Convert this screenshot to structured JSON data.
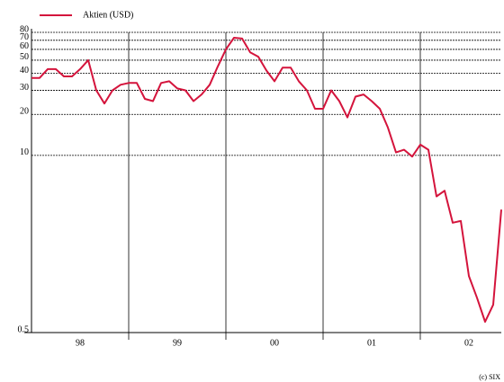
{
  "chart_data": {
    "type": "line",
    "log_y": true,
    "grid": true,
    "series": [
      {
        "name": "Aktien (USD)",
        "color": "#d4143c",
        "values": [
          37,
          37,
          43,
          43,
          38,
          38,
          43,
          50,
          30,
          24,
          30,
          33,
          34,
          34,
          26,
          25,
          34,
          35,
          31,
          30,
          25,
          28,
          33,
          45,
          60,
          73,
          72,
          57,
          53,
          42,
          35,
          44,
          44,
          35,
          30,
          22,
          22,
          30,
          25,
          19,
          27,
          28,
          25,
          22,
          16,
          10.5,
          11,
          9.8,
          12,
          11,
          5,
          5.5,
          3.2,
          3.3,
          1.3,
          0.9,
          0.6,
          0.8,
          4
        ]
      }
    ],
    "x": [
      "1998-01",
      "1998-02",
      "1998-03",
      "1998-04",
      "1998-05",
      "1998-06",
      "1998-07",
      "1998-08",
      "1998-09",
      "1998-10",
      "1998-11",
      "1998-12",
      "1999-01",
      "1999-02",
      "1999-03",
      "1999-04",
      "1999-05",
      "1999-06",
      "1999-07",
      "1999-08",
      "1999-09",
      "1999-10",
      "1999-11",
      "1999-12",
      "2000-01",
      "2000-02",
      "2000-03",
      "2000-04",
      "2000-05",
      "2000-06",
      "2000-07",
      "2000-08",
      "2000-09",
      "2000-10",
      "2000-11",
      "2000-12",
      "2001-01",
      "2001-02",
      "2001-03",
      "2001-04",
      "2001-05",
      "2001-06",
      "2001-07",
      "2001-08",
      "2001-09",
      "2001-10",
      "2001-11",
      "2001-12",
      "2002-01",
      "2002-02",
      "2002-03",
      "2002-04",
      "2002-05",
      "2002-06",
      "2002-07",
      "2002-08",
      "2002-09",
      "2002-10",
      "2002-11"
    ],
    "xlim": [
      "1998-01",
      "2002-11"
    ],
    "xticks": [
      {
        "value": "1998-07",
        "label": "98"
      },
      {
        "value": "1999-07",
        "label": "99"
      },
      {
        "value": "2000-07",
        "label": "00"
      },
      {
        "value": "2001-07",
        "label": "01"
      },
      {
        "value": "2002-07",
        "label": "02"
      }
    ],
    "year_lines": [
      "1999-01",
      "2000-01",
      "2001-01",
      "2002-01"
    ],
    "ylim": [
      0.5,
      80
    ],
    "yticks": [
      0.5,
      10,
      20,
      30,
      40,
      50,
      60,
      70,
      80
    ],
    "credit": "(c) SIX"
  }
}
